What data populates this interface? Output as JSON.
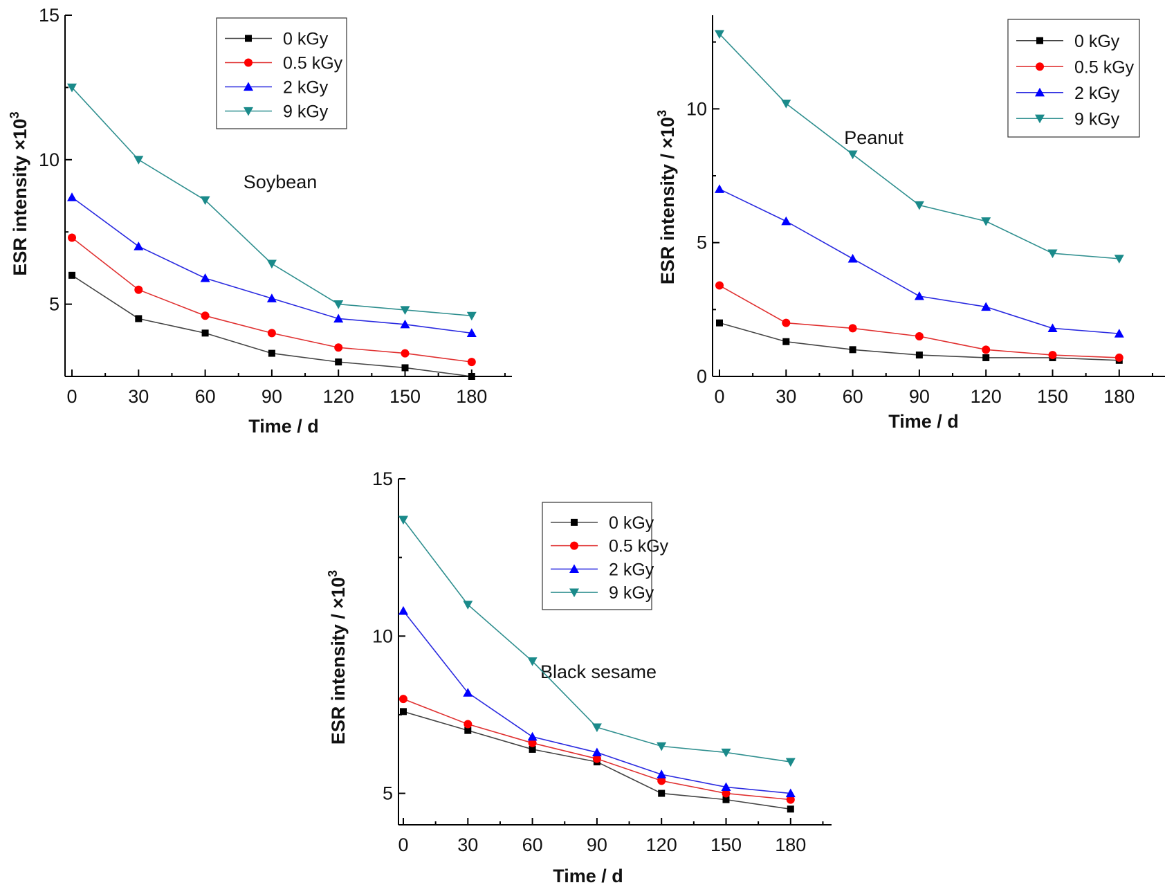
{
  "chart_data": [
    {
      "type": "line",
      "annotation": "Soybean",
      "xlabel": "Time / d",
      "ylabel": "ESR intensity ×10",
      "ylabel_sup": "3",
      "x": [
        0,
        30,
        60,
        90,
        120,
        150,
        180
      ],
      "x_ticks": [
        "0",
        "30",
        "60",
        "90",
        "120",
        "150",
        "180"
      ],
      "y_ticks": [
        {
          "value": 5,
          "label": "5"
        },
        {
          "value": 10,
          "label": "10"
        },
        {
          "value": 15,
          "label": "15"
        }
      ],
      "ylim": [
        2.5,
        15
      ],
      "series": [
        {
          "name": "0 kGy",
          "values": [
            6.0,
            4.5,
            4.0,
            3.3,
            3.0,
            2.8,
            2.5
          ]
        },
        {
          "name": "0.5 kGy",
          "values": [
            7.3,
            5.5,
            4.6,
            4.0,
            3.5,
            3.3,
            3.0
          ]
        },
        {
          "name": "2 kGy",
          "values": [
            8.7,
            7.0,
            5.9,
            5.2,
            4.5,
            4.3,
            4.0
          ]
        },
        {
          "name": "9 kGy",
          "values": [
            12.5,
            10.0,
            8.6,
            6.4,
            5.0,
            4.8,
            4.6
          ]
        }
      ]
    },
    {
      "type": "line",
      "annotation": "Peanut",
      "xlabel": "Time / d",
      "ylabel": "ESR intensity / ×10",
      "ylabel_sup": "3",
      "x": [
        0,
        30,
        60,
        90,
        120,
        150,
        180
      ],
      "x_ticks": [
        "0",
        "30",
        "60",
        "90",
        "120",
        "150",
        "180"
      ],
      "y_ticks": [
        {
          "value": 0,
          "label": "0"
        },
        {
          "value": 5,
          "label": "5"
        },
        {
          "value": 10,
          "label": "10"
        }
      ],
      "ylim": [
        0,
        13.5
      ],
      "series": [
        {
          "name": "0 kGy",
          "values": [
            2.0,
            1.3,
            1.0,
            0.8,
            0.7,
            0.7,
            0.6
          ]
        },
        {
          "name": "0.5 kGy",
          "values": [
            3.4,
            2.0,
            1.8,
            1.5,
            1.0,
            0.8,
            0.7
          ]
        },
        {
          "name": "2 kGy",
          "values": [
            7.0,
            5.8,
            4.4,
            3.0,
            2.6,
            1.8,
            1.6
          ]
        },
        {
          "name": "9 kGy",
          "values": [
            12.8,
            10.2,
            8.3,
            6.4,
            5.8,
            4.6,
            4.4
          ]
        }
      ]
    },
    {
      "type": "line",
      "annotation": "Black sesame",
      "xlabel": "Time / d",
      "ylabel": "ESR intensity / ×10",
      "ylabel_sup": "3",
      "x": [
        0,
        30,
        60,
        90,
        120,
        150,
        180
      ],
      "x_ticks": [
        "0",
        "30",
        "60",
        "90",
        "120",
        "150",
        "180"
      ],
      "y_ticks": [
        {
          "value": 5,
          "label": "5"
        },
        {
          "value": 10,
          "label": "10"
        },
        {
          "value": 15,
          "label": "15"
        }
      ],
      "ylim": [
        4,
        15
      ],
      "series": [
        {
          "name": "0 kGy",
          "values": [
            7.6,
            7.0,
            6.4,
            6.0,
            5.0,
            4.8,
            4.5
          ]
        },
        {
          "name": "0.5 kGy",
          "values": [
            8.0,
            7.2,
            6.6,
            6.1,
            5.4,
            5.0,
            4.8
          ]
        },
        {
          "name": "2 kGy",
          "values": [
            10.8,
            8.2,
            6.8,
            6.3,
            5.6,
            5.2,
            5.0
          ]
        },
        {
          "name": "9 kGy",
          "values": [
            13.7,
            11.0,
            9.2,
            7.1,
            6.5,
            6.3,
            6.0
          ]
        }
      ]
    }
  ],
  "series_styles": [
    {
      "color": "#000000",
      "line_color": "#444444",
      "marker": "square"
    },
    {
      "color": "#ff0000",
      "line_color": "#e03030",
      "marker": "circle"
    },
    {
      "color": "#0000ff",
      "line_color": "#2a2ae0",
      "marker": "triangle-up"
    },
    {
      "color": "#1a8a8a",
      "line_color": "#2f8f8f",
      "marker": "triangle-down"
    }
  ]
}
